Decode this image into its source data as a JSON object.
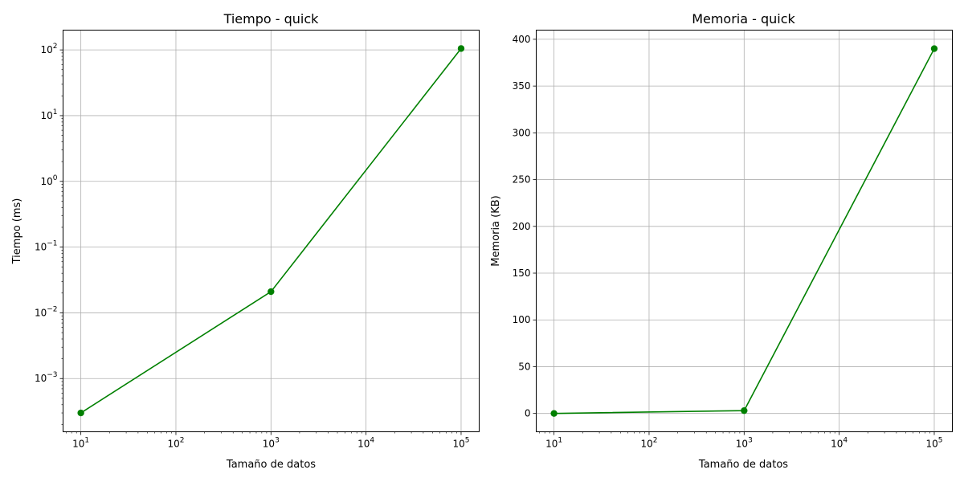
{
  "chart_data": [
    {
      "type": "line",
      "title": "Tiempo - quick",
      "xlabel": "Tamaño de datos",
      "ylabel": "Tiempo (ms)",
      "xscale": "log",
      "yscale": "log",
      "xlim": [
        6.5,
        155000
      ],
      "ylim": [
        0.000155,
        200
      ],
      "x_ticks": [
        {
          "value": 10,
          "base": "10",
          "exp": "1"
        },
        {
          "value": 100,
          "base": "10",
          "exp": "2"
        },
        {
          "value": 1000,
          "base": "10",
          "exp": "3"
        },
        {
          "value": 10000,
          "base": "10",
          "exp": "4"
        },
        {
          "value": 100000,
          "base": "10",
          "exp": "5"
        }
      ],
      "y_ticks": [
        {
          "value": 0.001,
          "base": "10",
          "exp": "−3"
        },
        {
          "value": 0.01,
          "base": "10",
          "exp": "−2"
        },
        {
          "value": 0.1,
          "base": "10",
          "exp": "−1"
        },
        {
          "value": 1,
          "base": "10",
          "exp": "0"
        },
        {
          "value": 10,
          "base": "10",
          "exp": "1"
        },
        {
          "value": 100,
          "base": "10",
          "exp": "2"
        }
      ],
      "grid": true,
      "color": "#008000",
      "marker": "circle",
      "series": [
        {
          "x": [
            10,
            1000,
            100000
          ],
          "y": [
            0.0003,
            0.021,
            105
          ]
        }
      ]
    },
    {
      "type": "line",
      "title": "Memoria - quick",
      "xlabel": "Tamaño de datos",
      "ylabel": "Memoria (KB)",
      "xscale": "log",
      "yscale": "linear",
      "xlim": [
        6.5,
        155000
      ],
      "ylim": [
        -19.6,
        409.8
      ],
      "x_ticks": [
        {
          "value": 10,
          "base": "10",
          "exp": "1"
        },
        {
          "value": 100,
          "base": "10",
          "exp": "2"
        },
        {
          "value": 1000,
          "base": "10",
          "exp": "3"
        },
        {
          "value": 10000,
          "base": "10",
          "exp": "4"
        },
        {
          "value": 100000,
          "base": "10",
          "exp": "5"
        }
      ],
      "y_ticks": [
        {
          "value": 0,
          "label": "0"
        },
        {
          "value": 50,
          "label": "50"
        },
        {
          "value": 100,
          "label": "100"
        },
        {
          "value": 150,
          "label": "150"
        },
        {
          "value": 200,
          "label": "200"
        },
        {
          "value": 250,
          "label": "250"
        },
        {
          "value": 300,
          "label": "300"
        },
        {
          "value": 350,
          "label": "350"
        },
        {
          "value": 400,
          "label": "400"
        }
      ],
      "grid": true,
      "color": "#008000",
      "marker": "circle",
      "series": [
        {
          "x": [
            10,
            1000,
            100000
          ],
          "y": [
            0,
            3,
            390
          ]
        }
      ]
    }
  ]
}
